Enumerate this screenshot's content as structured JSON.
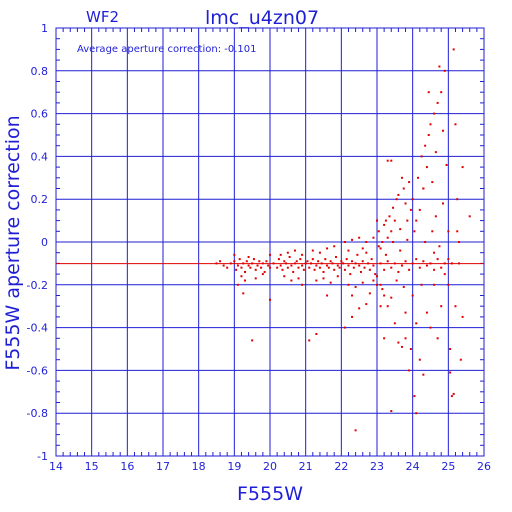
{
  "header": {
    "chip": "WF2",
    "title": "lmc_u4zn07"
  },
  "annotation": "Average aperture correction: -0.101",
  "colors": {
    "axis": "#1f1fd6",
    "grid": "#1f1fd6",
    "points": "#e00000",
    "reference_line": "#e00000"
  },
  "chart_data": {
    "type": "scatter",
    "title": "lmc_u4zn07",
    "subtitle": "WF2",
    "xlabel": "F555W",
    "ylabel": "F555W aperture correction",
    "xlim": [
      14,
      26
    ],
    "ylim": [
      -1,
      1
    ],
    "x_ticks": [
      "14",
      "15",
      "16",
      "17",
      "18",
      "19",
      "20",
      "21",
      "22",
      "23",
      "24",
      "25",
      "26"
    ],
    "y_ticks": [
      "1",
      "0.8",
      "0.6",
      "0.4",
      "0.2",
      "0",
      "-0.2",
      "-0.4",
      "-0.6",
      "-0.8",
      "-1"
    ],
    "grid": true,
    "reference_line": {
      "y": -0.101
    },
    "series": [
      {
        "points": [
          [
            18.5,
            -0.1
          ],
          [
            18.6,
            -0.09
          ],
          [
            18.7,
            -0.11
          ],
          [
            18.8,
            -0.12
          ],
          [
            18.9,
            -0.1
          ],
          [
            19.0,
            -0.09
          ],
          [
            19.05,
            -0.13
          ],
          [
            19.1,
            -0.11
          ],
          [
            19.15,
            -0.08
          ],
          [
            19.2,
            -0.12
          ],
          [
            19.25,
            -0.1
          ],
          [
            19.3,
            -0.14
          ],
          [
            19.35,
            -0.09
          ],
          [
            19.4,
            -0.11
          ],
          [
            19.45,
            -0.12
          ],
          [
            19.5,
            -0.1
          ],
          [
            19.55,
            -0.08
          ],
          [
            19.6,
            -0.13
          ],
          [
            19.65,
            -0.11
          ],
          [
            19.7,
            -0.09
          ],
          [
            19.75,
            -0.12
          ],
          [
            19.8,
            -0.1
          ],
          [
            19.85,
            -0.14
          ],
          [
            19.9,
            -0.09
          ],
          [
            19.95,
            -0.11
          ],
          [
            20.0,
            -0.12
          ],
          [
            19.2,
            -0.16
          ],
          [
            19.3,
            -0.18
          ],
          [
            19.1,
            -0.2
          ],
          [
            19.25,
            -0.24
          ],
          [
            19.6,
            -0.17
          ],
          [
            19.8,
            -0.15
          ],
          [
            19.5,
            -0.46
          ],
          [
            19.0,
            -0.06
          ],
          [
            19.4,
            -0.07
          ],
          [
            20.0,
            -0.06
          ],
          [
            20.1,
            -0.1
          ],
          [
            20.2,
            -0.12
          ],
          [
            20.25,
            -0.08
          ],
          [
            20.3,
            -0.11
          ],
          [
            20.35,
            -0.13
          ],
          [
            20.4,
            -0.09
          ],
          [
            20.45,
            -0.1
          ],
          [
            20.5,
            -0.12
          ],
          [
            20.55,
            -0.07
          ],
          [
            20.6,
            -0.11
          ],
          [
            20.65,
            -0.14
          ],
          [
            20.7,
            -0.1
          ],
          [
            20.75,
            -0.09
          ],
          [
            20.8,
            -0.12
          ],
          [
            20.85,
            -0.08
          ],
          [
            20.9,
            -0.11
          ],
          [
            20.95,
            -0.13
          ],
          [
            21.0,
            -0.1
          ],
          [
            20.3,
            -0.06
          ],
          [
            20.5,
            -0.05
          ],
          [
            20.7,
            -0.04
          ],
          [
            20.9,
            -0.06
          ],
          [
            20.4,
            -0.16
          ],
          [
            20.6,
            -0.18
          ],
          [
            20.8,
            -0.17
          ],
          [
            20.0,
            -0.27
          ],
          [
            20.9,
            -0.2
          ],
          [
            21.05,
            -0.09
          ],
          [
            21.1,
            -0.12
          ],
          [
            21.15,
            -0.1
          ],
          [
            21.2,
            -0.08
          ],
          [
            21.25,
            -0.13
          ],
          [
            21.3,
            -0.11
          ],
          [
            21.35,
            -0.09
          ],
          [
            21.4,
            -0.12
          ],
          [
            21.45,
            -0.1
          ],
          [
            21.5,
            -0.14
          ],
          [
            21.55,
            -0.08
          ],
          [
            21.6,
            -0.11
          ],
          [
            21.65,
            -0.12
          ],
          [
            21.7,
            -0.09
          ],
          [
            21.75,
            -0.1
          ],
          [
            21.8,
            -0.13
          ],
          [
            21.85,
            -0.07
          ],
          [
            21.9,
            -0.11
          ],
          [
            21.95,
            -0.12
          ],
          [
            22.0,
            -0.09
          ],
          [
            21.2,
            -0.04
          ],
          [
            21.4,
            -0.05
          ],
          [
            21.6,
            -0.03
          ],
          [
            21.8,
            -0.02
          ],
          [
            21.5,
            -0.17
          ],
          [
            21.7,
            -0.19
          ],
          [
            21.9,
            -0.16
          ],
          [
            21.3,
            -0.18
          ],
          [
            21.6,
            -0.25
          ],
          [
            21.1,
            -0.46
          ],
          [
            21.3,
            -0.43
          ],
          [
            22.05,
            -0.1
          ],
          [
            22.1,
            -0.13
          ],
          [
            22.15,
            -0.08
          ],
          [
            22.2,
            -0.11
          ],
          [
            22.25,
            -0.15
          ],
          [
            22.3,
            -0.09
          ],
          [
            22.35,
            -0.12
          ],
          [
            22.4,
            -0.1
          ],
          [
            22.45,
            -0.06
          ],
          [
            22.5,
            -0.11
          ],
          [
            22.55,
            -0.14
          ],
          [
            22.6,
            -0.09
          ],
          [
            22.65,
            -0.12
          ],
          [
            22.7,
            -0.05
          ],
          [
            22.75,
            -0.1
          ],
          [
            22.8,
            -0.13
          ],
          [
            22.85,
            -0.08
          ],
          [
            22.9,
            -0.11
          ],
          [
            22.95,
            -0.15
          ],
          [
            22.1,
            0.0
          ],
          [
            22.3,
            0.01
          ],
          [
            22.5,
            0.02
          ],
          [
            22.7,
            0.0
          ],
          [
            22.9,
            0.02
          ],
          [
            22.2,
            -0.2
          ],
          [
            22.4,
            -0.21
          ],
          [
            22.6,
            -0.19
          ],
          [
            22.8,
            -0.24
          ],
          [
            22.3,
            -0.25
          ],
          [
            22.5,
            -0.31
          ],
          [
            22.7,
            -0.29
          ],
          [
            22.1,
            -0.4
          ],
          [
            22.3,
            -0.35
          ],
          [
            22.4,
            -0.88
          ],
          [
            22.9,
            -0.18
          ],
          [
            22.6,
            -0.03
          ],
          [
            22.2,
            -0.04
          ],
          [
            23.0,
            0.1
          ],
          [
            23.05,
            0.05
          ],
          [
            23.1,
            -0.03
          ],
          [
            23.15,
            0.0
          ],
          [
            23.2,
            0.08
          ],
          [
            23.25,
            0.1
          ],
          [
            23.3,
            0.02
          ],
          [
            23.35,
            0.12
          ],
          [
            23.4,
            0.05
          ],
          [
            23.45,
            0.16
          ],
          [
            23.5,
            0.1
          ],
          [
            23.55,
            0.2
          ],
          [
            23.6,
            0.22
          ],
          [
            23.65,
            0.06
          ],
          [
            23.7,
            0.3
          ],
          [
            23.75,
            0.25
          ],
          [
            23.8,
            0.18
          ],
          [
            23.85,
            0.1
          ],
          [
            23.9,
            0.28
          ],
          [
            23.95,
            0.15
          ],
          [
            23.1,
            -0.1
          ],
          [
            23.2,
            -0.13
          ],
          [
            23.3,
            -0.09
          ],
          [
            23.4,
            -0.12
          ],
          [
            23.5,
            -0.1
          ],
          [
            23.6,
            -0.14
          ],
          [
            23.7,
            -0.11
          ],
          [
            23.8,
            -0.09
          ],
          [
            23.9,
            -0.13
          ],
          [
            23.0,
            -0.16
          ],
          [
            23.1,
            -0.2
          ],
          [
            23.2,
            -0.25
          ],
          [
            23.3,
            -0.3
          ],
          [
            23.4,
            -0.26
          ],
          [
            23.5,
            -0.38
          ],
          [
            23.6,
            -0.47
          ],
          [
            23.7,
            -0.49
          ],
          [
            23.8,
            -0.45
          ],
          [
            23.9,
            -0.6
          ],
          [
            23.0,
            -0.2
          ],
          [
            23.2,
            -0.45
          ],
          [
            23.4,
            0.38
          ],
          [
            23.3,
            0.38
          ],
          [
            23.4,
            -0.79
          ],
          [
            23.8,
            -0.33
          ],
          [
            23.1,
            -0.3
          ],
          [
            23.05,
            -0.02
          ],
          [
            23.25,
            -0.06
          ],
          [
            23.45,
            0.0
          ],
          [
            23.65,
            -0.04
          ],
          [
            23.85,
            0.01
          ],
          [
            23.15,
            -0.22
          ],
          [
            23.55,
            -0.18
          ],
          [
            23.75,
            -0.21
          ],
          [
            23.95,
            -0.5
          ],
          [
            24.0,
            0.2
          ],
          [
            24.05,
            0.05
          ],
          [
            24.1,
            0.1
          ],
          [
            24.15,
            0.3
          ],
          [
            24.2,
            0.15
          ],
          [
            24.25,
            0.4
          ],
          [
            24.3,
            0.25
          ],
          [
            24.35,
            0.45
          ],
          [
            24.4,
            0.35
          ],
          [
            24.45,
            0.5
          ],
          [
            24.5,
            0.55
          ],
          [
            24.55,
            0.28
          ],
          [
            24.6,
            0.6
          ],
          [
            24.65,
            0.42
          ],
          [
            24.7,
            0.65
          ],
          [
            24.75,
            0.82
          ],
          [
            24.8,
            0.7
          ],
          [
            24.85,
            0.52
          ],
          [
            24.9,
            0.8
          ],
          [
            24.95,
            0.36
          ],
          [
            24.0,
            -0.1
          ],
          [
            24.1,
            -0.08
          ],
          [
            24.2,
            -0.12
          ],
          [
            24.3,
            -0.09
          ],
          [
            24.4,
            -0.11
          ],
          [
            24.5,
            -0.1
          ],
          [
            24.6,
            -0.13
          ],
          [
            24.7,
            -0.08
          ],
          [
            24.8,
            -0.12
          ],
          [
            24.9,
            -0.1
          ],
          [
            24.0,
            -0.25
          ],
          [
            24.1,
            -0.38
          ],
          [
            24.2,
            -0.55
          ],
          [
            24.3,
            -0.62
          ],
          [
            24.1,
            -0.8
          ],
          [
            24.4,
            -0.33
          ],
          [
            24.5,
            -0.4
          ],
          [
            24.6,
            -0.2
          ],
          [
            24.7,
            -0.45
          ],
          [
            24.8,
            -0.3
          ],
          [
            24.9,
            -0.15
          ],
          [
            24.05,
            -0.72
          ],
          [
            24.35,
            0.0
          ],
          [
            24.55,
            0.05
          ],
          [
            24.75,
            -0.02
          ],
          [
            24.25,
            -0.2
          ],
          [
            24.65,
            0.12
          ],
          [
            24.85,
            0.18
          ],
          [
            24.45,
            0.7
          ],
          [
            24.3,
            0.25
          ],
          [
            24.6,
            -0.05
          ],
          [
            25.0,
            -0.2
          ],
          [
            25.05,
            -0.5
          ],
          [
            25.1,
            -0.72
          ],
          [
            25.15,
            0.9
          ],
          [
            25.2,
            0.55
          ],
          [
            25.25,
            0.2
          ],
          [
            25.3,
            -0.1
          ],
          [
            25.35,
            -0.55
          ],
          [
            25.4,
            0.35
          ],
          [
            25.0,
            0.05
          ],
          [
            25.05,
            -0.61
          ],
          [
            25.1,
            -0.1
          ],
          [
            25.2,
            -0.3
          ],
          [
            25.3,
            0.0
          ],
          [
            25.4,
            -0.35
          ],
          [
            25.6,
            0.12
          ],
          [
            25.15,
            -0.71
          ],
          [
            25.25,
            0.05
          ],
          [
            25.0,
            -0.08
          ]
        ]
      }
    ]
  }
}
